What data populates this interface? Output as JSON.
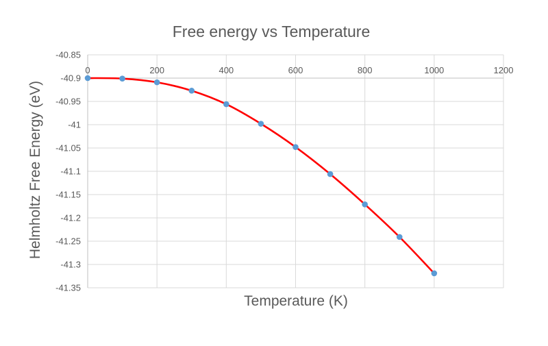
{
  "chart_data": {
    "type": "scatter",
    "title": "Free energy vs Temperature",
    "xlabel": "Temperature (K)",
    "ylabel": "Helmholtz Free Energy (eV)",
    "xlim": [
      0,
      1200
    ],
    "ylim": [
      -41.35,
      -40.85
    ],
    "x_ticks": [
      0,
      200,
      400,
      600,
      800,
      1000,
      1200
    ],
    "y_ticks": [
      -40.85,
      -40.9,
      -40.95,
      -41,
      -41.05,
      -41.1,
      -41.15,
      -41.2,
      -41.25,
      -41.3,
      -41.35
    ],
    "x_tick_labels": [
      "0",
      "200",
      "400",
      "600",
      "800",
      "1000",
      "1200"
    ],
    "y_tick_labels": [
      "-40.85",
      "-40.9",
      "-40.95",
      "-41",
      "-41.05",
      "-41.1",
      "-41.15",
      "-41.2",
      "-41.25",
      "-41.3",
      "-41.35"
    ],
    "x_axis_position": "top, at y = -40.9",
    "grid": true,
    "legend": "none",
    "series": [
      {
        "x": [
          0,
          100,
          200,
          300,
          400,
          500,
          600,
          700,
          800,
          900,
          1000
        ],
        "y": [
          -40.9,
          -40.901,
          -40.909,
          -40.927,
          -40.956,
          -40.998,
          -41.048,
          -41.106,
          -41.171,
          -41.241,
          -41.319
        ],
        "marker_color": "#5b9bd5",
        "line_color": "#ff0000",
        "smooth_line": true
      }
    ]
  }
}
